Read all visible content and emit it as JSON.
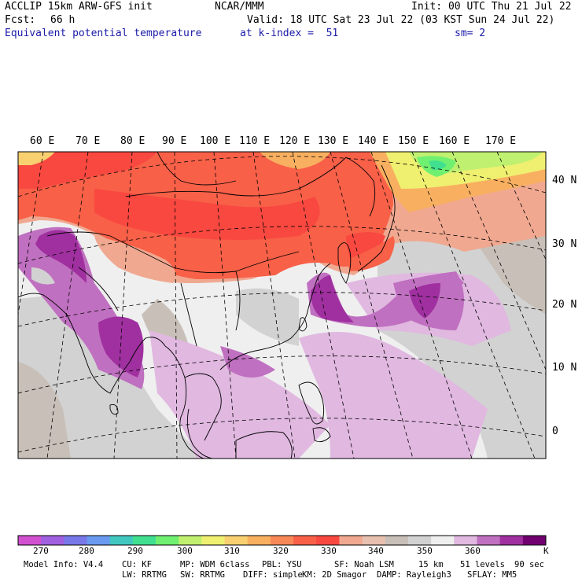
{
  "header": {
    "model": "ACCLIP 15km ARW-GFS init",
    "org": "NCAR/MMM",
    "init": "Init: 00 UTC Thu 21 Jul 22",
    "fcst_label": "Fcst:",
    "fcst_value": "66 h",
    "valid": "Valid: 18 UTC Sat 23 Jul 22 (03 KST Sun 24 Jul 22)",
    "field": "Equivalent potential temperature",
    "level": "at k-index =  51",
    "smooth": "sm= 2"
  },
  "map": {
    "lon_labels": [
      "60 E",
      "70 E",
      "80 E",
      "90 E",
      "100 E",
      "110 E",
      "120 E",
      "130 E",
      "140 E",
      "150 E",
      "160 E",
      "170 E"
    ],
    "lat_labels": [
      "40 N",
      "30 N",
      "20 N",
      "10 N",
      "0"
    ]
  },
  "colorbar": {
    "colors": [
      "#d050d0",
      "#a060e0",
      "#7878e8",
      "#6a9af0",
      "#40c8c0",
      "#40e090",
      "#70f070",
      "#c0f070",
      "#f0f070",
      "#f8d070",
      "#f8b060",
      "#f88858",
      "#f86048",
      "#f84840",
      "#f0a890",
      "#e8c0b0",
      "#c8c0b8",
      "#d2d2d2",
      "#efefef",
      "#e0b8e0",
      "#c070c0",
      "#a030a0",
      "#700070"
    ],
    "tick_labels": [
      "270",
      "280",
      "290",
      "300",
      "310",
      "320",
      "330",
      "340",
      "350",
      "360"
    ],
    "unit": "K"
  },
  "model_info": {
    "line1": [
      "Model Info: V4.4",
      "CU: KF",
      "MP: WDM 6class",
      "PBL: YSU",
      "SF: Noah LSM",
      "15 km",
      "51 levels",
      "90 sec"
    ],
    "line2": [
      "LW: RRTMG",
      "SW: RRTMG",
      "DIFF: simple",
      "KM: 2D Smagor",
      "DAMP: Rayleigh3",
      "SFLAY: MM5"
    ]
  }
}
